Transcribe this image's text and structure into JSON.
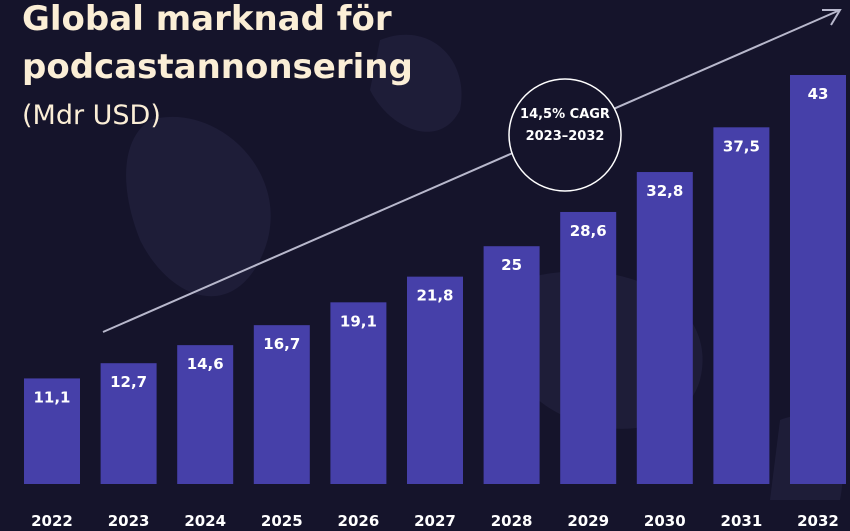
{
  "chart_data": {
    "type": "bar",
    "title_lines": [
      "Global marknad för",
      "podcastannonsering"
    ],
    "subtitle": "(Mdr USD)",
    "annotation": {
      "lines": [
        "14,5% CAGR",
        "2023–2032"
      ]
    },
    "categories": [
      "2022",
      "2023",
      "2024",
      "2025",
      "2026",
      "2027",
      "2028",
      "2029",
      "2030",
      "2031",
      "2032"
    ],
    "values": [
      11.1,
      12.7,
      14.6,
      16.7,
      19.1,
      21.8,
      25,
      28.6,
      32.8,
      37.5,
      43
    ],
    "value_labels": [
      "11,1",
      "12,7",
      "14,6",
      "16,7",
      "19,1",
      "21,8",
      "25",
      "28,6",
      "32,8",
      "37,5",
      "43"
    ],
    "color": "#4640a9"
  }
}
